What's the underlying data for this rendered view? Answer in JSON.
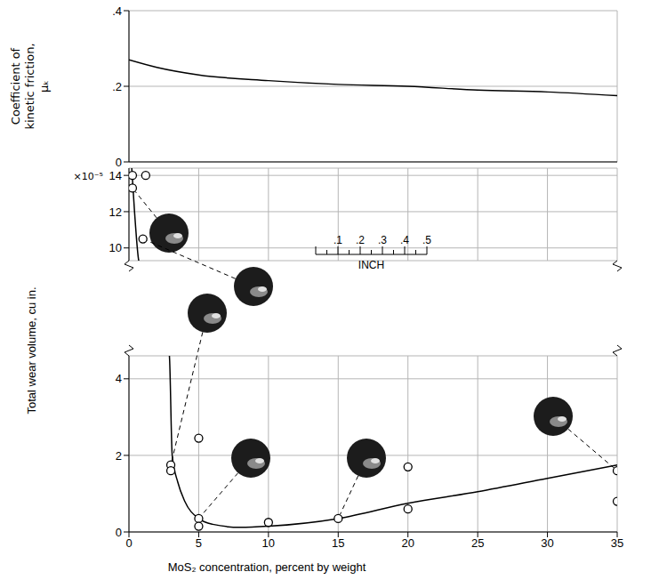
{
  "chart_data": [
    {
      "type": "line",
      "ylabel": "Coefficient of kinetic friction, μₖ",
      "x": [
        0,
        2,
        5,
        10,
        15,
        20,
        25,
        30,
        35
      ],
      "values": [
        0.27,
        0.25,
        0.23,
        0.215,
        0.205,
        0.2,
        0.19,
        0.185,
        0.175
      ],
      "color": "#000000",
      "xlim": [
        0,
        35
      ],
      "xticks": [
        0,
        5,
        10,
        15,
        20,
        25,
        30,
        35
      ],
      "ylim": [
        0,
        0.4
      ],
      "yticks": [
        0,
        {
          "value": 0.2,
          "label": ".2"
        },
        {
          "value": 0.4,
          "label": ".4"
        }
      ],
      "grid": true,
      "tick_labels": "y"
    },
    {
      "type": "scatter",
      "xlabel": "MoS₂ concentration, percent by weight",
      "ylabel": "Total wear volume, cu in.",
      "x": [
        0.25,
        0.25,
        1.2,
        1.0,
        3,
        3,
        5,
        5,
        5,
        10,
        15,
        20,
        20,
        35,
        35
      ],
      "values": [
        14.0,
        13.3,
        14.0,
        10.5,
        1.75,
        1.6,
        2.45,
        0.35,
        0.15,
        0.25,
        0.35,
        1.7,
        0.6,
        1.6,
        0.8
      ],
      "marker": "open_circle",
      "color": "#000000",
      "fit": {
        "type": "line",
        "x": [
          0.2,
          0.4,
          0.7,
          2.9,
          3.1,
          3.5,
          4,
          5,
          6,
          8,
          10,
          15,
          20,
          25,
          30,
          35
        ],
        "values": [
          14.4,
          12.0,
          9.3,
          4.6,
          2.0,
          1.3,
          0.8,
          0.35,
          0.2,
          0.12,
          0.15,
          0.35,
          0.75,
          1.05,
          1.4,
          1.75
        ]
      },
      "xlim": [
        0,
        35
      ],
      "xticks": [
        0,
        5,
        10,
        15,
        20,
        25,
        30,
        35
      ],
      "ylim": [
        0,
        14.4
      ],
      "y_break": [
        4.6,
        9.3
      ],
      "yticks": [
        0,
        2,
        4,
        10,
        12,
        14
      ],
      "grid": true,
      "annotations": [
        {
          "text": "×10⁻⁵"
        }
      ],
      "scale_bar": {
        "label": "INCH",
        "range": [
          0,
          0.5
        ],
        "ticks": [
          {
            "value": 0.1,
            "label": ".1"
          },
          {
            "value": 0.2,
            "label": ".2"
          },
          {
            "value": 0.3,
            "label": ".3"
          },
          {
            "value": 0.4,
            "label": ".4"
          },
          {
            "value": 0.5,
            "label": ".5"
          }
        ]
      }
    }
  ]
}
